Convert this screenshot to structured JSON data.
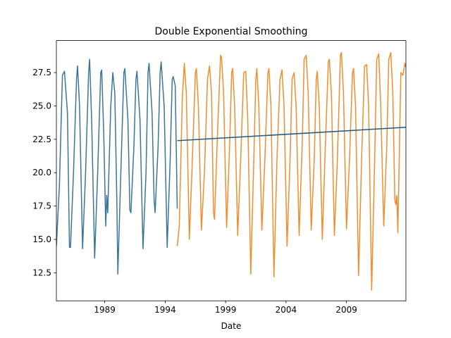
{
  "chart_data": {
    "type": "line",
    "title": "Double Exponential Smoothing",
    "xlabel": "Date",
    "ylabel": "",
    "x_axis": {
      "kind": "date",
      "xlim": [
        "1985-01",
        "2013-12"
      ],
      "ticks": [
        {
          "value": "1989-01",
          "label": "1989"
        },
        {
          "value": "1994-01",
          "label": "1994"
        },
        {
          "value": "1999-01",
          "label": "1999"
        },
        {
          "value": "2004-01",
          "label": "2004"
        },
        {
          "value": "2009-01",
          "label": "2009"
        }
      ]
    },
    "y_axis": {
      "ylim": [
        10.4,
        29.9
      ],
      "ticks": [
        {
          "value": 12.5,
          "label": "12.5"
        },
        {
          "value": 15.0,
          "label": "15.0"
        },
        {
          "value": 17.5,
          "label": "17.5"
        },
        {
          "value": 20.0,
          "label": "20.0"
        },
        {
          "value": 22.5,
          "label": "22.5"
        },
        {
          "value": 25.0,
          "label": "25.0"
        },
        {
          "value": 27.5,
          "label": "27.5"
        }
      ]
    },
    "grid": false,
    "legend": "none",
    "series": [
      {
        "role": "train",
        "color": "#3a7699",
        "points": [
          [
            "1985-01",
            14.5
          ],
          [
            "1985-04",
            19.0
          ],
          [
            "1985-07",
            27.3
          ],
          [
            "1985-09",
            27.6
          ],
          [
            "1985-12",
            24.5
          ],
          [
            "1986-02",
            14.4
          ],
          [
            "1986-03",
            14.4
          ],
          [
            "1986-06",
            20.0
          ],
          [
            "1986-09",
            27.0
          ],
          [
            "1986-10",
            28.0
          ],
          [
            "1986-12",
            25.0
          ],
          [
            "1987-03",
            14.3
          ],
          [
            "1987-06",
            20.0
          ],
          [
            "1987-09",
            27.5
          ],
          [
            "1987-10",
            28.5
          ],
          [
            "1987-12",
            24.0
          ],
          [
            "1988-03",
            13.6
          ],
          [
            "1988-06",
            20.0
          ],
          [
            "1988-09",
            27.5
          ],
          [
            "1988-10",
            27.7
          ],
          [
            "1988-12",
            23.0
          ],
          [
            "1989-02",
            16.0
          ],
          [
            "1989-03",
            18.3
          ],
          [
            "1989-04",
            17.0
          ],
          [
            "1989-07",
            25.0
          ],
          [
            "1989-09",
            27.5
          ],
          [
            "1989-11",
            26.0
          ],
          [
            "1990-01",
            18.0
          ],
          [
            "1990-02",
            12.4
          ],
          [
            "1990-05",
            20.0
          ],
          [
            "1990-08",
            27.5
          ],
          [
            "1990-09",
            27.8
          ],
          [
            "1990-12",
            24.0
          ],
          [
            "1991-02",
            17.2
          ],
          [
            "1991-03",
            17.0
          ],
          [
            "1991-06",
            22.0
          ],
          [
            "1991-08",
            27.0
          ],
          [
            "1991-09",
            27.6
          ],
          [
            "1991-12",
            24.0
          ],
          [
            "1992-03",
            14.3
          ],
          [
            "1992-06",
            20.0
          ],
          [
            "1992-08",
            27.5
          ],
          [
            "1992-09",
            28.2
          ],
          [
            "1992-12",
            24.5
          ],
          [
            "1993-02",
            18.0
          ],
          [
            "1993-03",
            17.0
          ],
          [
            "1993-06",
            22.0
          ],
          [
            "1993-08",
            27.5
          ],
          [
            "1993-09",
            28.3
          ],
          [
            "1993-12",
            25.0
          ],
          [
            "1994-03",
            14.4
          ],
          [
            "1994-06",
            21.0
          ],
          [
            "1994-08",
            27.0
          ],
          [
            "1994-09",
            27.2
          ],
          [
            "1994-11",
            26.5
          ],
          [
            "1995-01",
            17.3
          ]
        ]
      },
      {
        "role": "test",
        "color": "#ef8d2f",
        "points": [
          [
            "1995-01",
            14.5
          ],
          [
            "1995-03",
            16.0
          ],
          [
            "1995-06",
            25.5
          ],
          [
            "1995-08",
            28.2
          ],
          [
            "1995-10",
            26.0
          ],
          [
            "1996-01",
            15.0
          ],
          [
            "1996-04",
            21.0
          ],
          [
            "1996-07",
            27.5
          ],
          [
            "1996-08",
            27.8
          ],
          [
            "1996-10",
            25.0
          ],
          [
            "1997-01",
            15.7
          ],
          [
            "1997-04",
            20.0
          ],
          [
            "1997-07",
            27.0
          ],
          [
            "1997-09",
            28.0
          ],
          [
            "1997-11",
            26.0
          ],
          [
            "1998-01",
            17.0
          ],
          [
            "1998-02",
            16.5
          ],
          [
            "1998-05",
            23.0
          ],
          [
            "1998-08",
            28.8
          ],
          [
            "1998-09",
            28.6
          ],
          [
            "1998-11",
            26.0
          ],
          [
            "1999-02",
            15.9
          ],
          [
            "1999-05",
            22.0
          ],
          [
            "1999-07",
            27.5
          ],
          [
            "1999-08",
            27.8
          ],
          [
            "1999-10",
            25.0
          ],
          [
            "2000-01",
            15.3
          ],
          [
            "2000-04",
            21.0
          ],
          [
            "2000-07",
            27.5
          ],
          [
            "2000-09",
            27.6
          ],
          [
            "2000-11",
            24.0
          ],
          [
            "2001-02",
            12.4
          ],
          [
            "2001-05",
            21.0
          ],
          [
            "2001-07",
            27.0
          ],
          [
            "2001-08",
            27.8
          ],
          [
            "2001-10",
            25.0
          ],
          [
            "2002-01",
            15.7
          ],
          [
            "2002-04",
            21.0
          ],
          [
            "2002-07",
            27.5
          ],
          [
            "2002-08",
            27.8
          ],
          [
            "2002-10",
            25.0
          ],
          [
            "2003-01",
            12.2
          ],
          [
            "2003-04",
            21.0
          ],
          [
            "2003-07",
            27.0
          ],
          [
            "2003-09",
            27.7
          ],
          [
            "2003-11",
            25.0
          ],
          [
            "2004-02",
            14.5
          ],
          [
            "2004-05",
            21.0
          ],
          [
            "2004-07",
            27.0
          ],
          [
            "2004-09",
            27.5
          ],
          [
            "2004-11",
            25.0
          ],
          [
            "2005-02",
            15.3
          ],
          [
            "2005-05",
            22.0
          ],
          [
            "2005-07",
            28.5
          ],
          [
            "2005-09",
            28.8
          ],
          [
            "2005-11",
            26.0
          ],
          [
            "2006-02",
            15.7
          ],
          [
            "2006-05",
            21.0
          ],
          [
            "2006-07",
            27.0
          ],
          [
            "2006-08",
            27.6
          ],
          [
            "2006-10",
            25.0
          ],
          [
            "2007-01",
            15.0
          ],
          [
            "2007-04",
            22.0
          ],
          [
            "2007-07",
            28.3
          ],
          [
            "2007-08",
            28.5
          ],
          [
            "2007-10",
            26.0
          ],
          [
            "2008-01",
            15.3
          ],
          [
            "2008-04",
            21.0
          ],
          [
            "2008-07",
            28.8
          ],
          [
            "2008-08",
            29.0
          ],
          [
            "2008-10",
            26.0
          ],
          [
            "2009-01",
            15.8
          ],
          [
            "2009-04",
            21.0
          ],
          [
            "2009-07",
            27.5
          ],
          [
            "2009-08",
            27.8
          ],
          [
            "2009-10",
            25.0
          ],
          [
            "2010-01",
            12.3
          ],
          [
            "2010-04",
            21.0
          ],
          [
            "2010-07",
            28.0
          ],
          [
            "2010-09",
            28.1
          ],
          [
            "2010-11",
            25.0
          ],
          [
            "2011-02",
            11.2
          ],
          [
            "2011-05",
            21.0
          ],
          [
            "2011-07",
            28.5
          ],
          [
            "2011-09",
            28.9
          ],
          [
            "2011-11",
            25.0
          ],
          [
            "2012-02",
            16.0
          ],
          [
            "2012-05",
            22.0
          ],
          [
            "2012-07",
            28.5
          ],
          [
            "2012-09",
            29.0
          ],
          [
            "2012-11",
            26.0
          ],
          [
            "2013-01",
            18.0
          ],
          [
            "2013-02",
            17.6
          ],
          [
            "2013-03",
            18.3
          ],
          [
            "2013-04",
            15.5
          ],
          [
            "2013-07",
            27.5
          ],
          [
            "2013-09",
            27.3
          ],
          [
            "2013-11",
            28.2
          ],
          [
            "2013-12",
            27.9
          ]
        ]
      },
      {
        "role": "forecast",
        "color": "#1f5a82",
        "points": [
          [
            "1995-01",
            22.4
          ],
          [
            "2013-12",
            23.4
          ]
        ]
      }
    ]
  }
}
